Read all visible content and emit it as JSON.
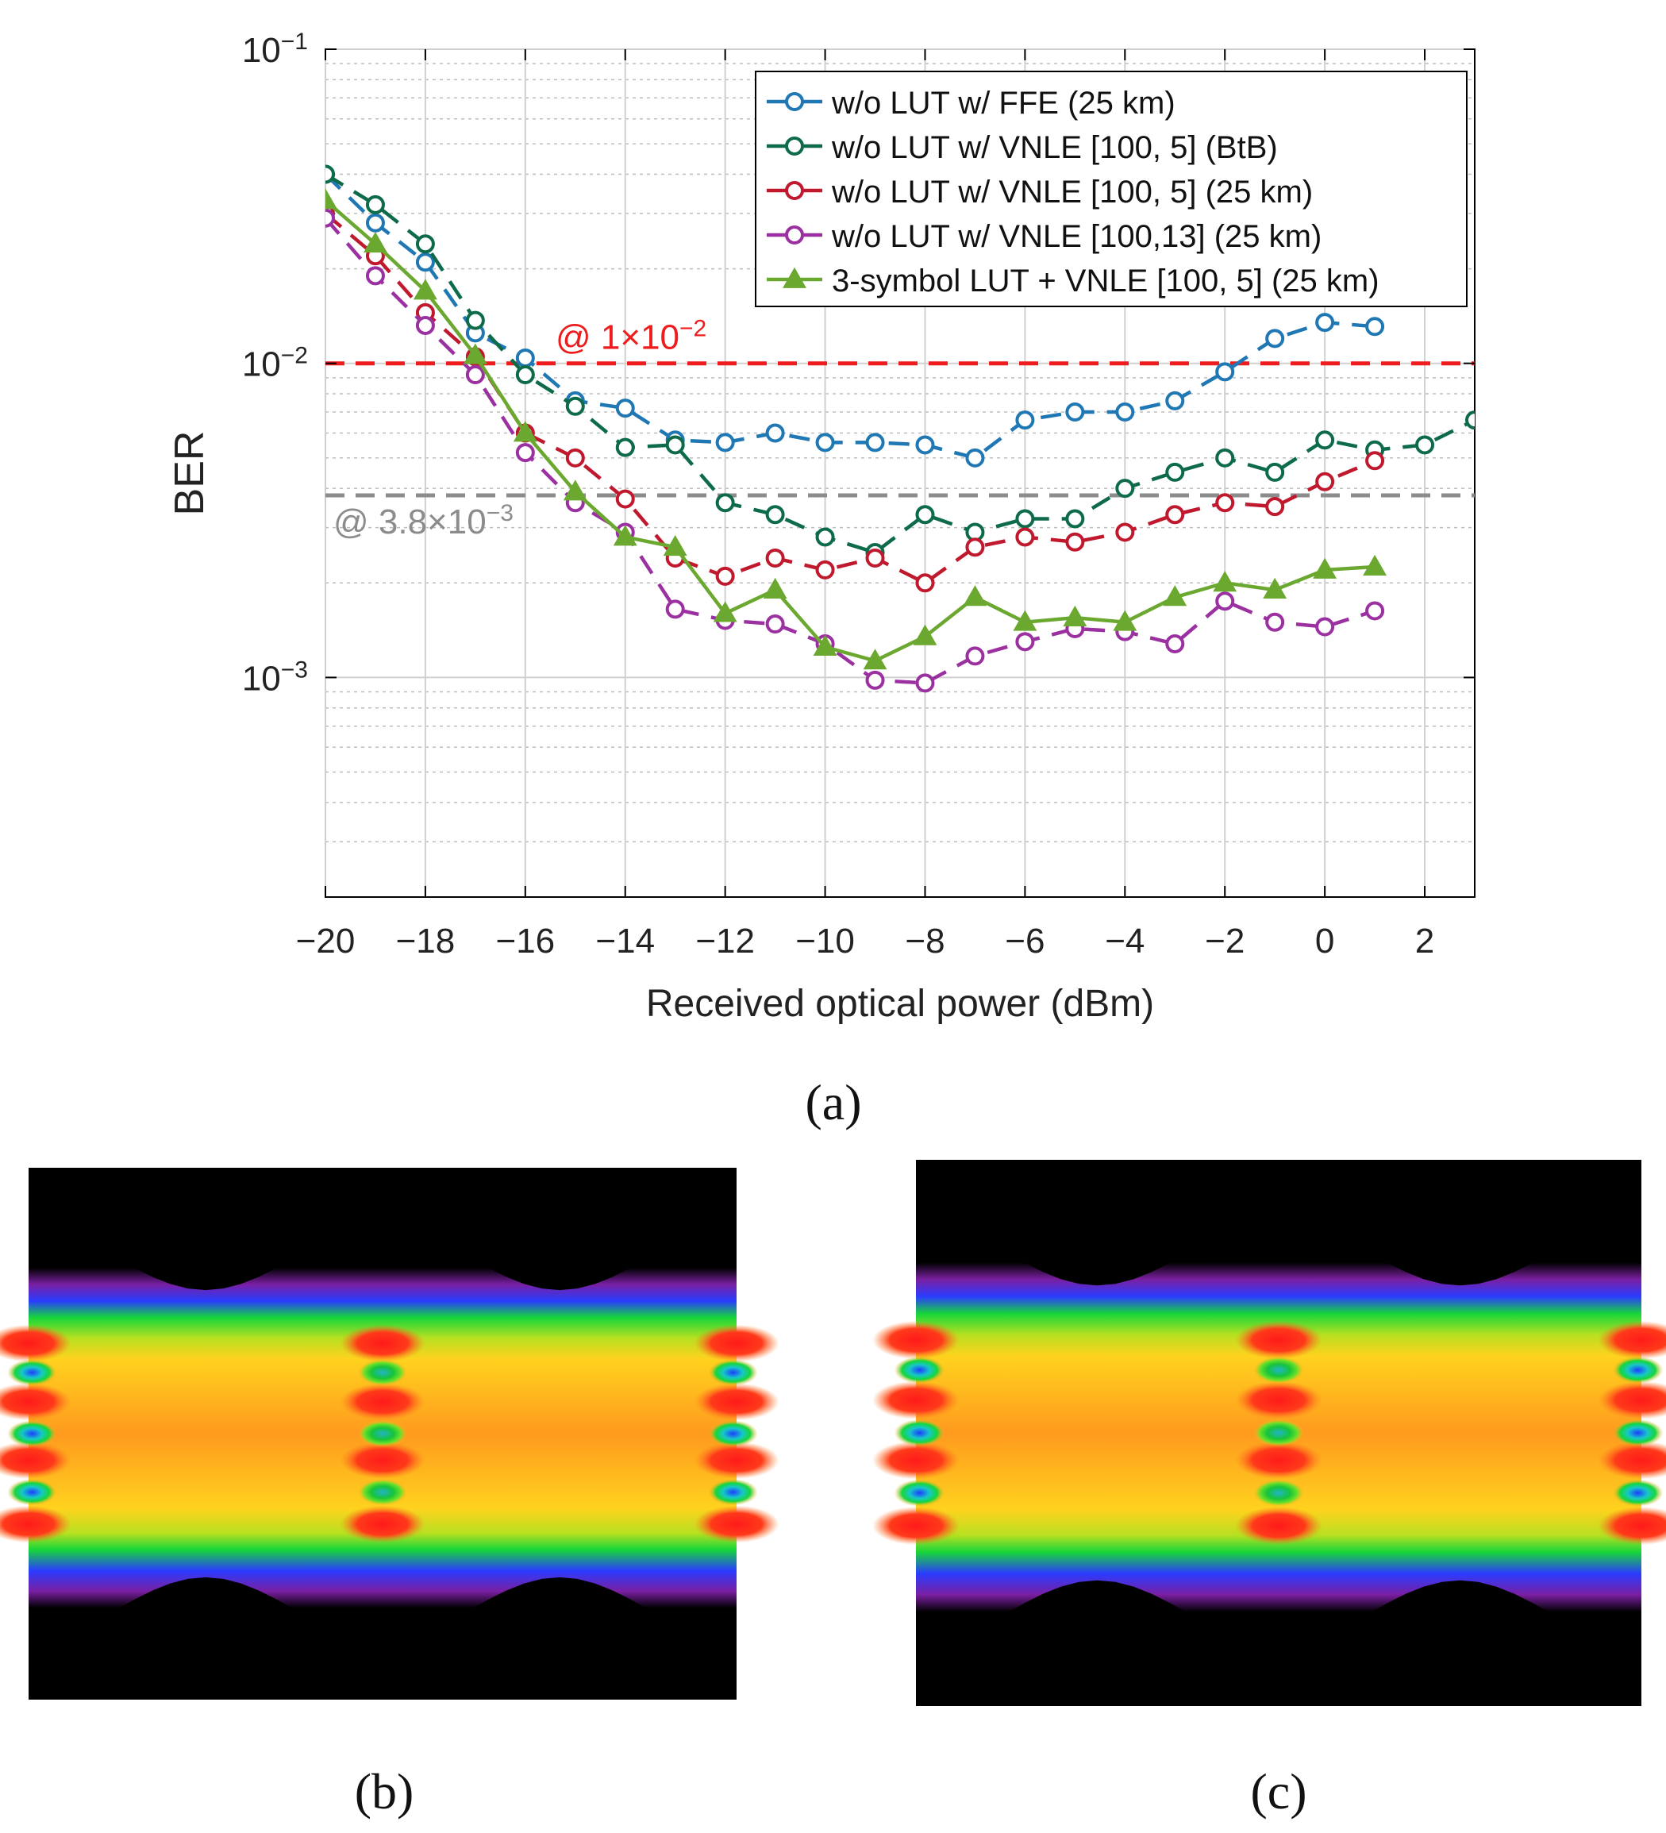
{
  "chart_data": {
    "type": "line",
    "title": "",
    "xlabel": "Received optical power (dBm)",
    "ylabel": "BER",
    "yscale": "log",
    "xlim": [
      -20,
      3
    ],
    "ylim": [
      0.0002,
      0.1
    ],
    "xticks": [
      -20,
      -18,
      -16,
      -14,
      -12,
      -10,
      -8,
      -6,
      -4,
      -2,
      0,
      2
    ],
    "xtick_labels": [
      "−20",
      "−18",
      "−16",
      "−14",
      "−12",
      "−10",
      "−8",
      "−6",
      "−4",
      "−2",
      "0",
      "2"
    ],
    "ytick_labels": [
      {
        "base": "10",
        "exp": "−1",
        "value": 0.1
      },
      {
        "base": "10",
        "exp": "−2",
        "value": 0.01
      },
      {
        "base": "10",
        "exp": "−3",
        "value": 0.001
      }
    ],
    "grid": true,
    "legend_position": "top-right",
    "series": [
      {
        "name": "w/o LUT w/ FFE (25 km)",
        "color": "#1f77b4",
        "style": "dashed",
        "marker": "circle",
        "x": [
          -20,
          -19,
          -18,
          -17,
          -16,
          -15,
          -14,
          -13,
          -12,
          -11,
          -10,
          -9,
          -8,
          -7,
          -6,
          -5,
          -4,
          -3,
          -2,
          -1,
          0,
          1
        ],
        "y": [
          0.04,
          0.028,
          0.021,
          0.0125,
          0.0104,
          0.0076,
          0.0072,
          0.0057,
          0.0056,
          0.006,
          0.0056,
          0.0056,
          0.0055,
          0.005,
          0.0066,
          0.007,
          0.007,
          0.0076,
          0.0094,
          0.012,
          0.0135,
          0.0131
        ]
      },
      {
        "name": "w/o LUT w/ VNLE [100, 5] (BtB)",
        "color": "#0e6b4a",
        "style": "dashed",
        "marker": "circle",
        "x": [
          -20,
          -19,
          -18,
          -17,
          -16,
          -15,
          -14,
          -13,
          -12,
          -11,
          -10,
          -9,
          -8,
          -7,
          -6,
          -5,
          -4,
          -3,
          -2,
          -1,
          0,
          1,
          2,
          3
        ],
        "y": [
          0.04,
          0.032,
          0.024,
          0.0137,
          0.0092,
          0.0073,
          0.0054,
          0.0055,
          0.0036,
          0.0033,
          0.0028,
          0.0025,
          0.0033,
          0.0029,
          0.0032,
          0.0032,
          0.004,
          0.0045,
          0.005,
          0.0045,
          0.0057,
          0.0053,
          0.0055,
          0.0066
        ]
      },
      {
        "name": "w/o LUT w/ VNLE [100, 5] (25 km)",
        "color": "#c0192e",
        "style": "dashed",
        "marker": "circle",
        "x": [
          -20,
          -19,
          -18,
          -17,
          -16,
          -15,
          -14,
          -13,
          -12,
          -11,
          -10,
          -9,
          -8,
          -7,
          -6,
          -5,
          -4,
          -3,
          -2,
          -1,
          0,
          1
        ],
        "y": [
          0.03,
          0.022,
          0.0145,
          0.0105,
          0.006,
          0.005,
          0.0037,
          0.0024,
          0.0021,
          0.0024,
          0.0022,
          0.0024,
          0.002,
          0.0026,
          0.0028,
          0.0027,
          0.0029,
          0.0033,
          0.0036,
          0.0035,
          0.0042,
          0.0049
        ]
      },
      {
        "name": "w/o LUT w/ VNLE [100,13] (25 km)",
        "color": "#9b30a0",
        "style": "dashed",
        "marker": "circle",
        "x": [
          -20,
          -19,
          -18,
          -17,
          -16,
          -15,
          -14,
          -13,
          -12,
          -11,
          -10,
          -9,
          -8,
          -7,
          -6,
          -5,
          -4,
          -3,
          -2,
          -1,
          0,
          1
        ],
        "y": [
          0.029,
          0.019,
          0.0132,
          0.0092,
          0.0052,
          0.0036,
          0.0029,
          0.00165,
          0.00152,
          0.00148,
          0.00128,
          0.00098,
          0.00096,
          0.00117,
          0.0013,
          0.00143,
          0.0014,
          0.00128,
          0.00175,
          0.0015,
          0.00145,
          0.00163
        ]
      },
      {
        "name": "3-symbol LUT + VNLE [100, 5] (25 km)",
        "color": "#6aa82f",
        "style": "solid",
        "marker": "triangle",
        "x": [
          -20,
          -19,
          -18,
          -17,
          -16,
          -15,
          -14,
          -13,
          -12,
          -11,
          -10,
          -9,
          -8,
          -7,
          -6,
          -5,
          -4,
          -3,
          -2,
          -1,
          0,
          1
        ],
        "y": [
          0.033,
          0.024,
          0.017,
          0.0106,
          0.006,
          0.0039,
          0.0028,
          0.0026,
          0.0016,
          0.0019,
          0.00125,
          0.00113,
          0.00135,
          0.0018,
          0.0015,
          0.00155,
          0.0015,
          0.0018,
          0.002,
          0.0019,
          0.0022,
          0.00225
        ]
      }
    ],
    "reference_lines": [
      {
        "value": 0.01,
        "label_prefix": "@ 1×10",
        "label_exp": "−2",
        "color": "#ee1c1c"
      },
      {
        "value": 0.0038,
        "label_prefix": "@ 3.8×10",
        "label_exp": "−3",
        "color": "#8c8c8c"
      }
    ]
  },
  "panels": {
    "a": "(a)",
    "b": "(b)",
    "c": "(c)"
  },
  "eye_images": {
    "b": {
      "description": "PAM eye diagram heatmap",
      "colors": [
        "#000000",
        "#7a1fa2",
        "#1e3cff",
        "#16d63a",
        "#ffd21e",
        "#ff8a1e",
        "#ff1e1e"
      ]
    },
    "c": {
      "description": "PAM eye diagram heatmap",
      "colors": [
        "#000000",
        "#7a1fa2",
        "#1e3cff",
        "#16d63a",
        "#ffd21e",
        "#ff8a1e",
        "#ff1e1e"
      ]
    }
  }
}
